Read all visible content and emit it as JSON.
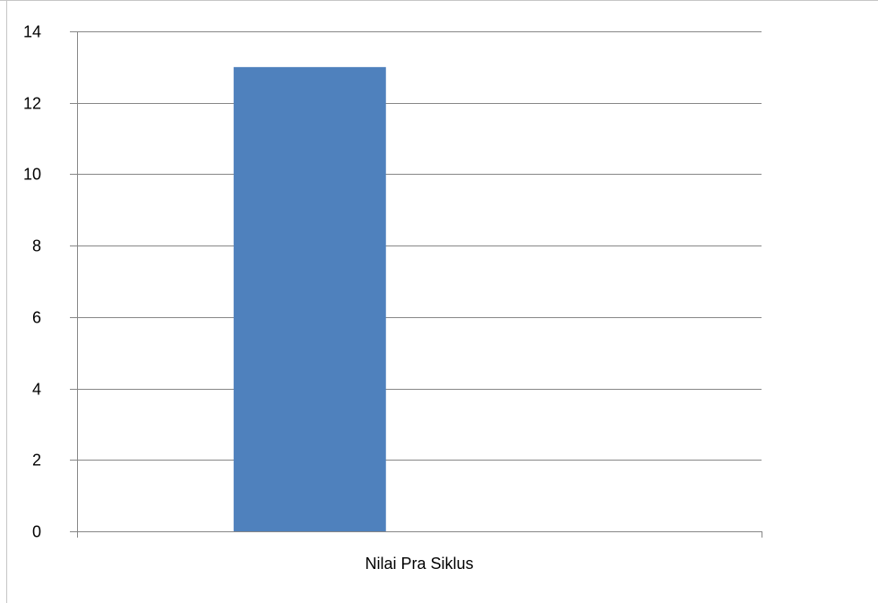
{
  "chart_data": {
    "type": "bar",
    "title": "",
    "xlabel": "",
    "ylabel": "",
    "categories": [
      "Nilai Pra Siklus"
    ],
    "series": [
      {
        "values": [
          13
        ],
        "color": "#4F81BD"
      }
    ],
    "ylim": [
      0,
      14
    ],
    "yticks": [
      0,
      2,
      4,
      6,
      8,
      10,
      12,
      14
    ],
    "grid": true,
    "legend": "none"
  }
}
